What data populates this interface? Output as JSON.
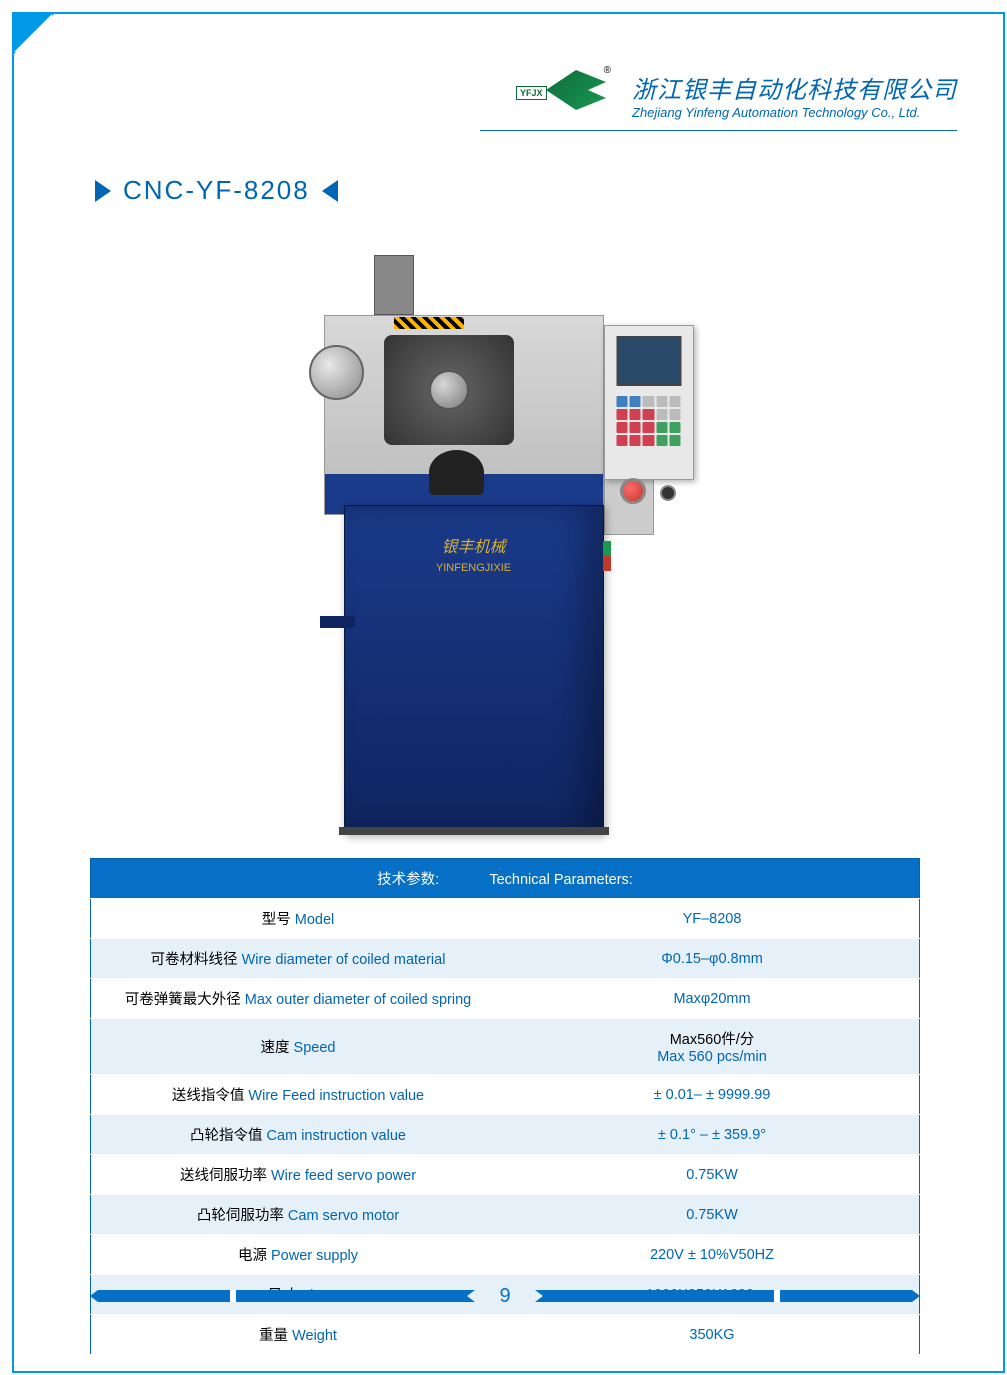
{
  "logo": {
    "tag": "YFJX",
    "reg": "®"
  },
  "company": {
    "cn": "浙江银丰自动化科技有限公司",
    "en": "Zhejiang Yinfeng Automation Technology Co., Ltd."
  },
  "product": {
    "title": "CNC-YF-8208"
  },
  "machine_badge": {
    "cn": "银丰机械",
    "en": "YINFENGJIXIE"
  },
  "spec_table": {
    "header_cn": "技术参数:",
    "header_en": "Technical Parameters:",
    "rows": [
      {
        "label_cn": "型号",
        "label_en": "Model",
        "value": "YF–8208"
      },
      {
        "label_cn": "可卷材料线径",
        "label_en": "Wire diameter of coiled material",
        "value": "Φ0.15–φ0.8mm"
      },
      {
        "label_cn": "可卷弹簧最大外径",
        "label_en": "Max outer diameter of coiled spring",
        "value": "Maxφ20mm"
      },
      {
        "label_cn": "速度",
        "label_en": "Speed",
        "value_cn": "Max560件/分",
        "value_en": "Max 560 pcs/min"
      },
      {
        "label_cn": "送线指令值",
        "label_en": "Wire Feed instruction value",
        "value": "± 0.01– ± 9999.99"
      },
      {
        "label_cn": "凸轮指令值",
        "label_en": "Cam instruction value",
        "value": "± 0.1° – ± 359.9°"
      },
      {
        "label_cn": "送线伺服功率",
        "label_en": "Wire feed servo power",
        "value": "0.75KW"
      },
      {
        "label_cn": "凸轮伺服功率",
        "label_en": "Cam servo motor",
        "value": "0.75KW"
      },
      {
        "label_cn": "电源",
        "label_en": "Power supply",
        "value": "220V ± 10%V50HZ"
      },
      {
        "label_cn": "尺寸",
        "label_en": "Size",
        "value": "1000X950X1600mm"
      },
      {
        "label_cn": "重量",
        "label_en": "Weight",
        "value": "350KG"
      }
    ]
  },
  "page_number": "9",
  "colors": {
    "primary_blue": "#0066b3",
    "header_blue": "#0570c5",
    "border_blue": "#0099e5",
    "row_alt": "#e5f0f8",
    "machine_blue": "#1a3a8a",
    "logo_green": "#1a9850"
  }
}
